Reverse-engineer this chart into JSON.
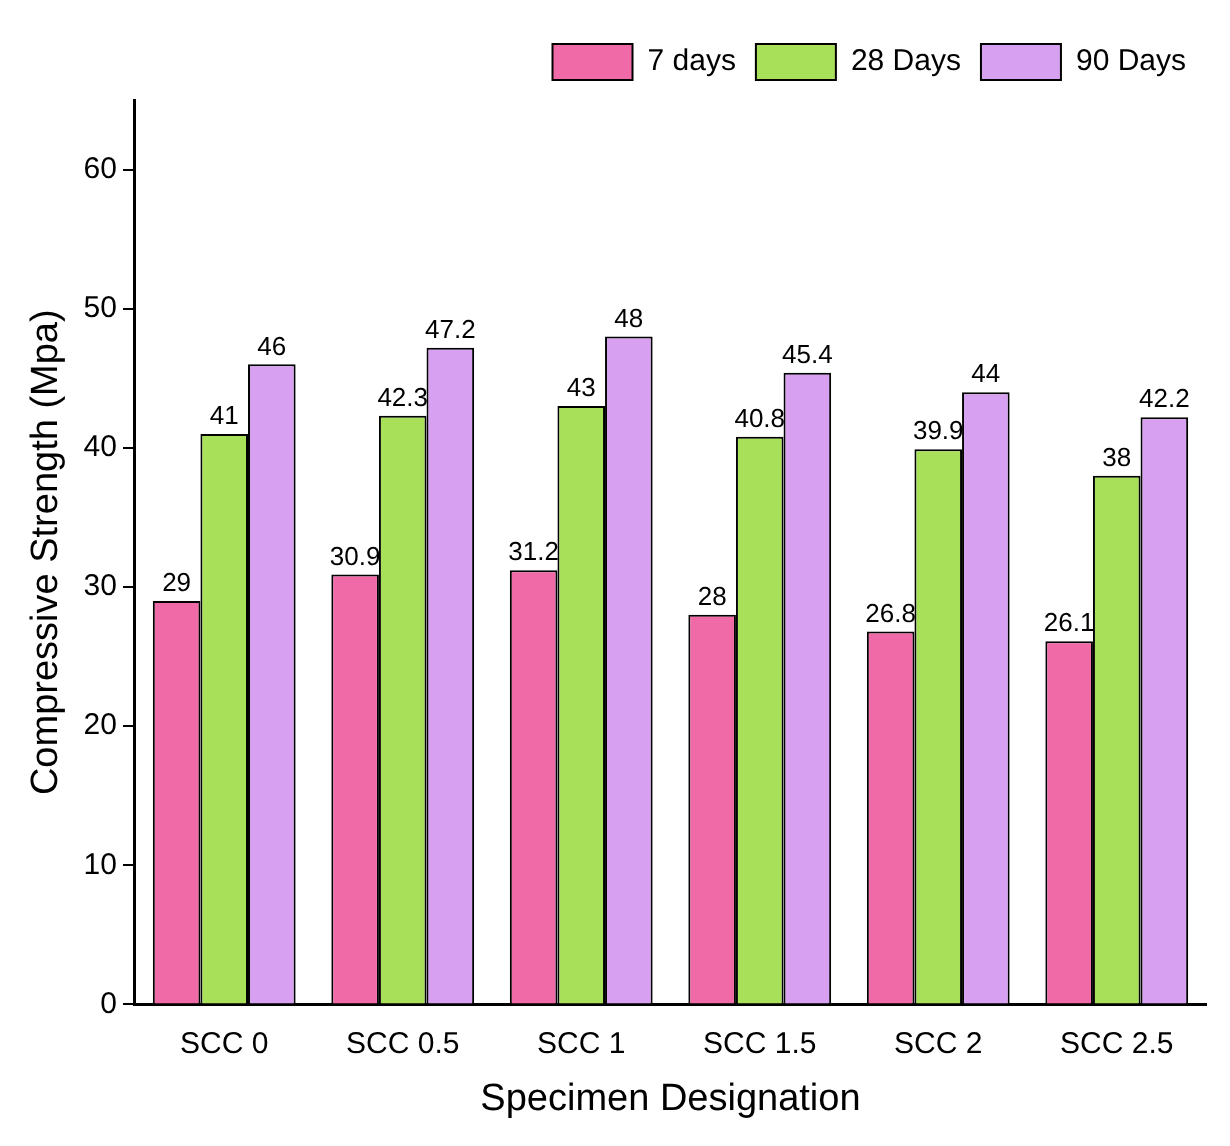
{
  "chart_data": {
    "type": "bar",
    "xlabel": "Specimen Designation",
    "ylabel": "Compressive Strength (Mpa)",
    "categories": [
      "SCC 0",
      "SCC 0.5",
      "SCC 1",
      "SCC 1.5",
      "SCC 2",
      "SCC 2.5"
    ],
    "series": [
      {
        "name": "7 days",
        "color": "#f06aa8",
        "values": [
          29,
          30.9,
          31.2,
          28,
          26.8,
          26.1
        ]
      },
      {
        "name": "28 Days",
        "color": "#a8e05a",
        "values": [
          41,
          42.3,
          43,
          40.8,
          39.9,
          38
        ]
      },
      {
        "name": "90 Days",
        "color": "#d8a0f0",
        "values": [
          46,
          47.2,
          48,
          45.4,
          44,
          42.2
        ]
      }
    ],
    "ylim": [
      0,
      65
    ],
    "yticks": [
      0,
      10,
      20,
      30,
      40,
      50,
      60
    ],
    "grid": false,
    "legend": "top right",
    "data_labels": true
  }
}
